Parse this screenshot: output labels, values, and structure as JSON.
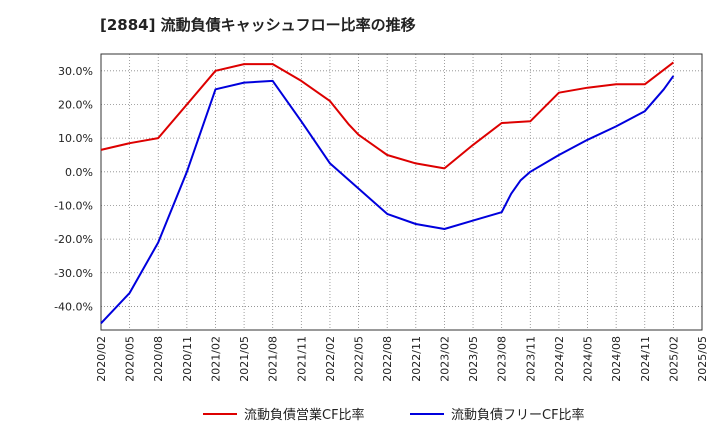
{
  "chart_data": {
    "type": "line",
    "title": "[2884]  流動負債キャッシュフロー比率の推移",
    "xlabel": "",
    "ylabel": "",
    "ylim": [
      -47,
      35
    ],
    "yticks": [
      30,
      20,
      10,
      0,
      -10,
      -20,
      -30,
      -40
    ],
    "ytick_labels": [
      "30.0%",
      "20.0%",
      "10.0%",
      "0.0%",
      "-10.0%",
      "-20.0%",
      "-30.0%",
      "-40.0%"
    ],
    "xticks": [
      "2020/02",
      "2020/05",
      "2020/08",
      "2020/11",
      "2021/02",
      "2021/05",
      "2021/08",
      "2021/11",
      "2022/02",
      "2022/05",
      "2022/08",
      "2022/11",
      "2023/02",
      "2023/05",
      "2023/08",
      "2023/11",
      "2024/02",
      "2024/05",
      "2024/08",
      "2024/11",
      "2025/02",
      "2025/05"
    ],
    "grid": true,
    "legend_position": "bottom",
    "series": [
      {
        "name": "流動負債営業CF比率",
        "color": "#dd0000",
        "points": [
          [
            "2020/02",
            6.5
          ],
          [
            "2020/05",
            8.5
          ],
          [
            "2020/08",
            10.0
          ],
          [
            "2020/11",
            20.0
          ],
          [
            "2021/02",
            30.0
          ],
          [
            "2021/05",
            32.0
          ],
          [
            "2021/08",
            32.0
          ],
          [
            "2021/11",
            27.0
          ],
          [
            "2022/02",
            21.0
          ],
          [
            "2022/04",
            14.0
          ],
          [
            "2022/05",
            11.0
          ],
          [
            "2022/08",
            5.0
          ],
          [
            "2022/11",
            2.5
          ],
          [
            "2023/02",
            1.0
          ],
          [
            "2023/05",
            8.0
          ],
          [
            "2023/08",
            14.5
          ],
          [
            "2023/11",
            15.0
          ],
          [
            "2024/02",
            23.5
          ],
          [
            "2024/05",
            25.0
          ],
          [
            "2024/08",
            26.0
          ],
          [
            "2024/11",
            26.0
          ],
          [
            "2025/02",
            32.5
          ]
        ]
      },
      {
        "name": "流動負債フリーCF比率",
        "color": "#0000dd",
        "points": [
          [
            "2020/02",
            -45.0
          ],
          [
            "2020/05",
            -36.0
          ],
          [
            "2020/08",
            -21.0
          ],
          [
            "2020/11",
            0.0
          ],
          [
            "2021/02",
            24.5
          ],
          [
            "2021/05",
            26.5
          ],
          [
            "2021/08",
            27.0
          ],
          [
            "2021/11",
            15.0
          ],
          [
            "2022/02",
            2.5
          ],
          [
            "2022/05",
            -5.0
          ],
          [
            "2022/08",
            -12.5
          ],
          [
            "2022/11",
            -15.5
          ],
          [
            "2023/02",
            -17.0
          ],
          [
            "2023/05",
            -14.5
          ],
          [
            "2023/08",
            -12.0
          ],
          [
            "2023/09",
            -6.5
          ],
          [
            "2023/10",
            -2.5
          ],
          [
            "2023/11",
            0.0
          ],
          [
            "2024/02",
            5.0
          ],
          [
            "2024/05",
            9.5
          ],
          [
            "2024/08",
            13.5
          ],
          [
            "2024/11",
            18.0
          ],
          [
            "2025/01",
            24.5
          ],
          [
            "2025/02",
            28.5
          ]
        ]
      }
    ]
  }
}
